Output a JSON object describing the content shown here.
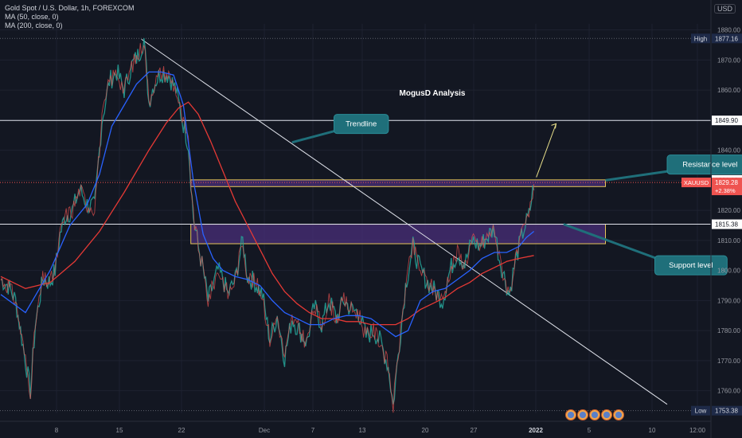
{
  "legend": {
    "symbol_line": "Gold Spot / U.S. Dollar, 1h, FOREXCOM",
    "ma50": "MA (50, close, 0)",
    "ma200": "MA (200, close, 0)"
  },
  "currency": "USD",
  "colors": {
    "background": "#131722",
    "grid": "#1e2230",
    "candle_up": "#26a69a",
    "candle_down": "#ef5350",
    "ma50": "#2962ff",
    "ma200": "#e53935",
    "zone_fill": "#4a2f7a",
    "zone_border": "#e8c65a",
    "callout": "#1f6f7a",
    "arrow": "#e8df8a",
    "price_tag": "#ef5350"
  },
  "chart_data": {
    "type": "candlestick",
    "title": "MogusD Analysis",
    "xlabel": "",
    "ylabel": "",
    "ylim": [
      1753.4,
      1881.0
    ],
    "grid": true,
    "x_ticks": [
      "8",
      "15",
      "22",
      "Dec",
      "7",
      "13",
      "20",
      "27",
      "2022",
      "5",
      "10",
      "12:00"
    ],
    "y_ticks": [
      1760,
      1770,
      1780,
      1790,
      1800,
      1810,
      1820,
      1830,
      1840,
      1850,
      1860,
      1870,
      1880
    ],
    "price_path": [
      [
        0,
        1797
      ],
      [
        3,
        1795
      ],
      [
        6,
        1790
      ],
      [
        9,
        1775
      ],
      [
        12,
        1760
      ],
      [
        14,
        1782
      ],
      [
        17,
        1797
      ],
      [
        20,
        1796
      ],
      [
        22,
        1800
      ],
      [
        24,
        1812
      ],
      [
        26,
        1818
      ],
      [
        29,
        1820
      ],
      [
        32,
        1827
      ],
      [
        35,
        1822
      ],
      [
        38,
        1821
      ],
      [
        41,
        1850
      ],
      [
        44,
        1863
      ],
      [
        47,
        1866
      ],
      [
        50,
        1860
      ],
      [
        53,
        1868
      ],
      [
        56,
        1872
      ],
      [
        58,
        1877
      ],
      [
        60,
        1856
      ],
      [
        62,
        1862
      ],
      [
        65,
        1866
      ],
      [
        68,
        1865
      ],
      [
        71,
        1860
      ],
      [
        73,
        1852
      ],
      [
        76,
        1842
      ],
      [
        78,
        1818
      ],
      [
        80,
        1808
      ],
      [
        82,
        1800
      ],
      [
        84,
        1790
      ],
      [
        86,
        1795
      ],
      [
        88,
        1800
      ],
      [
        90,
        1797
      ],
      [
        92,
        1792
      ],
      [
        95,
        1797
      ],
      [
        98,
        1810
      ],
      [
        100,
        1798
      ],
      [
        103,
        1796
      ],
      [
        106,
        1792
      ],
      [
        109,
        1777
      ],
      [
        112,
        1785
      ],
      [
        115,
        1771
      ],
      [
        118,
        1784
      ],
      [
        121,
        1780
      ],
      [
        124,
        1776
      ],
      [
        127,
        1788
      ],
      [
        130,
        1782
      ],
      [
        133,
        1790
      ],
      [
        136,
        1784
      ],
      [
        139,
        1790
      ],
      [
        142,
        1787
      ],
      [
        145,
        1786
      ],
      [
        148,
        1778
      ],
      [
        151,
        1780
      ],
      [
        154,
        1776
      ],
      [
        157,
        1768
      ],
      [
        159,
        1755
      ],
      [
        161,
        1772
      ],
      [
        164,
        1795
      ],
      [
        167,
        1808
      ],
      [
        170,
        1800
      ],
      [
        173,
        1796
      ],
      [
        176,
        1793
      ],
      [
        179,
        1790
      ],
      [
        182,
        1800
      ],
      [
        185,
        1806
      ],
      [
        188,
        1802
      ],
      [
        191,
        1810
      ],
      [
        194,
        1808
      ],
      [
        197,
        1811
      ],
      [
        200,
        1814
      ],
      [
        202,
        1804
      ],
      [
        204,
        1798
      ],
      [
        206,
        1792
      ],
      [
        208,
        1801
      ],
      [
        210,
        1808
      ],
      [
        212,
        1814
      ],
      [
        214,
        1818
      ],
      [
        216,
        1829
      ]
    ],
    "ma50_path": [
      [
        0,
        1792
      ],
      [
        10,
        1786
      ],
      [
        20,
        1800
      ],
      [
        28,
        1815
      ],
      [
        35,
        1822
      ],
      [
        40,
        1832
      ],
      [
        45,
        1848
      ],
      [
        50,
        1855
      ],
      [
        55,
        1862
      ],
      [
        60,
        1866
      ],
      [
        65,
        1866
      ],
      [
        70,
        1865
      ],
      [
        74,
        1855
      ],
      [
        78,
        1830
      ],
      [
        82,
        1812
      ],
      [
        86,
        1804
      ],
      [
        90,
        1800
      ],
      [
        95,
        1798
      ],
      [
        100,
        1797
      ],
      [
        105,
        1795
      ],
      [
        110,
        1790
      ],
      [
        115,
        1786
      ],
      [
        120,
        1784
      ],
      [
        125,
        1782
      ],
      [
        130,
        1782
      ],
      [
        135,
        1784
      ],
      [
        140,
        1785
      ],
      [
        145,
        1785
      ],
      [
        150,
        1784
      ],
      [
        155,
        1781
      ],
      [
        160,
        1778
      ],
      [
        165,
        1780
      ],
      [
        170,
        1790
      ],
      [
        175,
        1793
      ],
      [
        180,
        1794
      ],
      [
        185,
        1797
      ],
      [
        190,
        1800
      ],
      [
        195,
        1804
      ],
      [
        200,
        1806
      ],
      [
        205,
        1806
      ],
      [
        210,
        1808
      ],
      [
        213,
        1811
      ],
      [
        216,
        1813
      ]
    ],
    "ma200_path": [
      [
        0,
        1798
      ],
      [
        10,
        1794
      ],
      [
        20,
        1796
      ],
      [
        30,
        1803
      ],
      [
        40,
        1813
      ],
      [
        50,
        1826
      ],
      [
        60,
        1840
      ],
      [
        67,
        1849
      ],
      [
        72,
        1854
      ],
      [
        76,
        1856
      ],
      [
        80,
        1852
      ],
      [
        85,
        1843
      ],
      [
        90,
        1833
      ],
      [
        95,
        1823
      ],
      [
        100,
        1815
      ],
      [
        105,
        1807
      ],
      [
        110,
        1799
      ],
      [
        115,
        1793
      ],
      [
        120,
        1789
      ],
      [
        125,
        1786
      ],
      [
        130,
        1784
      ],
      [
        135,
        1784
      ],
      [
        140,
        1783
      ],
      [
        145,
        1783
      ],
      [
        150,
        1782
      ],
      [
        155,
        1782
      ],
      [
        160,
        1782
      ],
      [
        165,
        1784
      ],
      [
        170,
        1787
      ],
      [
        175,
        1789
      ],
      [
        180,
        1791
      ],
      [
        185,
        1794
      ],
      [
        190,
        1796
      ],
      [
        195,
        1799
      ],
      [
        200,
        1801
      ],
      [
        205,
        1803
      ],
      [
        210,
        1804
      ],
      [
        216,
        1805
      ]
    ],
    "horizontal_lines": [
      1849.9,
      1815.38
    ],
    "zones": [
      {
        "name": "resistance",
        "top": 1830.13,
        "bottom": 1827.9,
        "x0": 77,
        "x1": 245
      },
      {
        "name": "support",
        "top": 1815.38,
        "bottom": 1808.9,
        "x0": 77,
        "x1": 245
      }
    ],
    "trendline": {
      "from": [
        57,
        1876.9
      ],
      "to": [
        270,
        1755.5
      ]
    },
    "projection_arrow": {
      "from": [
        217,
        1831
      ],
      "to": [
        225,
        1848.8
      ]
    },
    "price_labels": [
      {
        "kind": "line",
        "text": "High",
        "value": "1877.16",
        "price": 1877.16
      },
      {
        "kind": "line",
        "text": "",
        "value": "1849.90",
        "price": 1849.9
      },
      {
        "kind": "line",
        "text": "",
        "value": "1830.13",
        "price": 1830.13
      },
      {
        "kind": "current",
        "text": "XAUUSD",
        "value": "1829.28",
        "change": "+2.38%",
        "price": 1829.28
      },
      {
        "kind": "line",
        "text": "",
        "value": "1815.38",
        "price": 1815.38
      },
      {
        "kind": "line",
        "text": "Low",
        "value": "1753.38",
        "price": 1753.38
      }
    ],
    "annotations": [
      {
        "text": "Trendline",
        "price": 1851.9,
        "x": 135,
        "pointer": [
          118,
          1842.6
        ]
      },
      {
        "text": "Resistance level",
        "price": 1838.4,
        "x": 270,
        "pointer": [
          245,
          1830
        ]
      },
      {
        "text": "Support level",
        "price": 1804.9,
        "x": 265,
        "pointer": [
          228,
          1815.4
        ]
      }
    ]
  }
}
